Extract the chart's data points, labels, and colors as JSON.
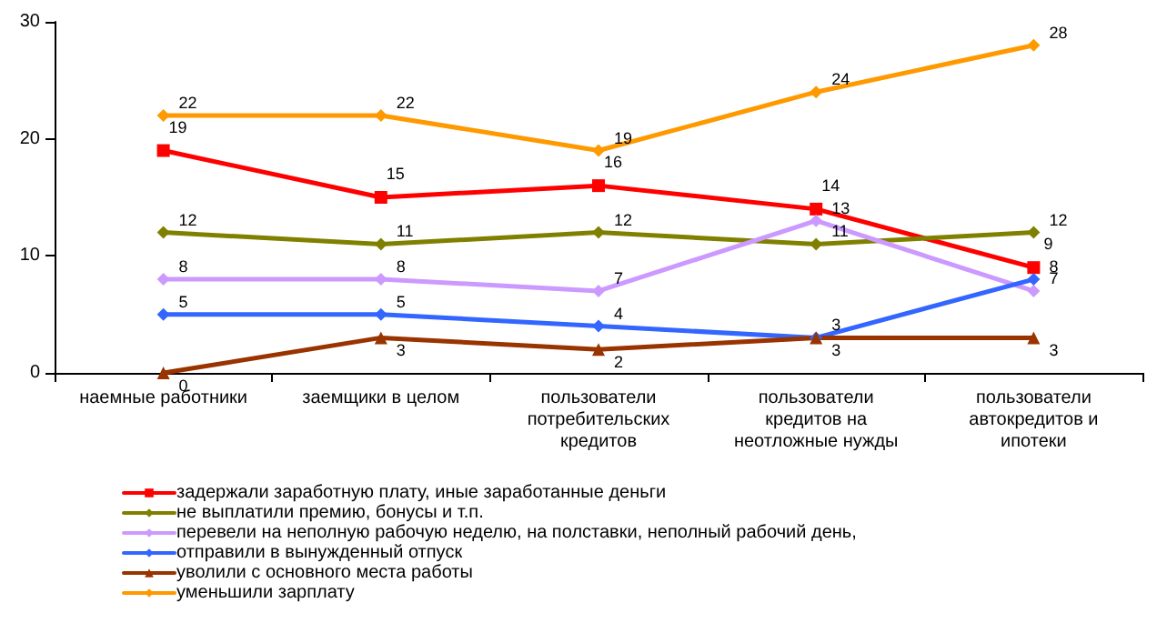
{
  "chart_data": {
    "type": "line",
    "categories": [
      "наемные работники",
      "заемщики в целом",
      "пользователи потребительских кредитов",
      "пользователи кредитов на неотложные нужды",
      "пользователи автокредитов и ипотеки"
    ],
    "series": [
      {
        "name": "задержали заработную плату, иные заработанные деньги",
        "color": "#ff0000",
        "marker": "square",
        "values": [
          19,
          15,
          16,
          14,
          9
        ]
      },
      {
        "name": "не выплатили премию, бонусы и т.п.",
        "color": "#808000",
        "values": [
          12,
          11,
          12,
          11,
          12
        ]
      },
      {
        "name": "перевели на неполную рабочую неделю, на полставки, неполный рабочий день,",
        "color": "#cc99ff",
        "values": [
          8,
          8,
          7,
          13,
          7
        ]
      },
      {
        "name": "отправили в вынужденный отпуск",
        "color": "#3366ff",
        "values": [
          5,
          5,
          4,
          3,
          8
        ]
      },
      {
        "name": "уволили с основного места работы",
        "color": "#993300",
        "marker": "triangle",
        "values": [
          0,
          3,
          2,
          3,
          3
        ]
      },
      {
        "name": "уменьшили зарплату",
        "color": "#ff9900",
        "values": [
          22,
          22,
          19,
          24,
          28
        ]
      }
    ],
    "ylim": [
      0,
      30
    ],
    "yticks": [
      0,
      10,
      20,
      30
    ],
    "grid": false,
    "legend": "bottom",
    "marker": "diamond",
    "line_style": "solid",
    "data_labels": true
  }
}
